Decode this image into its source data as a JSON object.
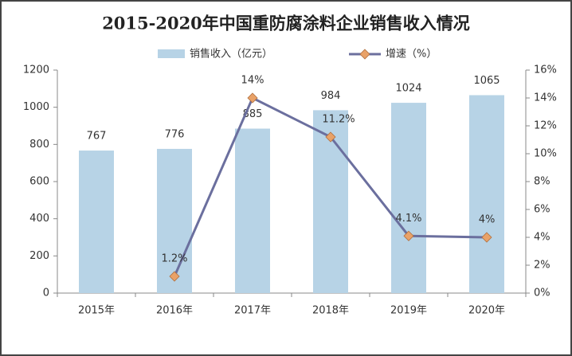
{
  "chart_data": {
    "type": "bar_line",
    "title": "2015-2020年中国重防腐涂料企业销售收入情况",
    "categories": [
      "2015年",
      "2016年",
      "2017年",
      "2018年",
      "2019年",
      "2020年"
    ],
    "series": [
      {
        "name": "销售收入（亿元）",
        "type": "bar",
        "color": "#b7d3e6",
        "values": [
          767,
          776,
          885,
          984,
          1024,
          1065
        ]
      },
      {
        "name": "增速（%）",
        "type": "line",
        "axis": "y2",
        "color": "#6b6f9e",
        "marker_color": "#e9a268",
        "values": [
          null,
          1.2,
          14,
          11.2,
          4.1,
          4
        ],
        "value_labels": [
          null,
          "1.2%",
          "14%",
          "11.2%",
          "4.1%",
          "4%"
        ]
      }
    ],
    "ylim": [
      0,
      1200
    ],
    "yticks": [
      0,
      200,
      400,
      600,
      800,
      1000,
      1200
    ],
    "y2lim": [
      0,
      16
    ],
    "y2ticks": [
      {
        "value": 0,
        "label": "0%"
      },
      {
        "value": 2,
        "label": "2%"
      },
      {
        "value": 4,
        "label": "4%"
      },
      {
        "value": 6,
        "label": "6%"
      },
      {
        "value": 8,
        "label": "8%"
      },
      {
        "value": 10,
        "label": "10%"
      },
      {
        "value": 12,
        "label": "12%"
      },
      {
        "value": 14,
        "label": "14%"
      },
      {
        "value": 16,
        "label": "16%"
      }
    ],
    "grid": false,
    "legend": "top"
  }
}
